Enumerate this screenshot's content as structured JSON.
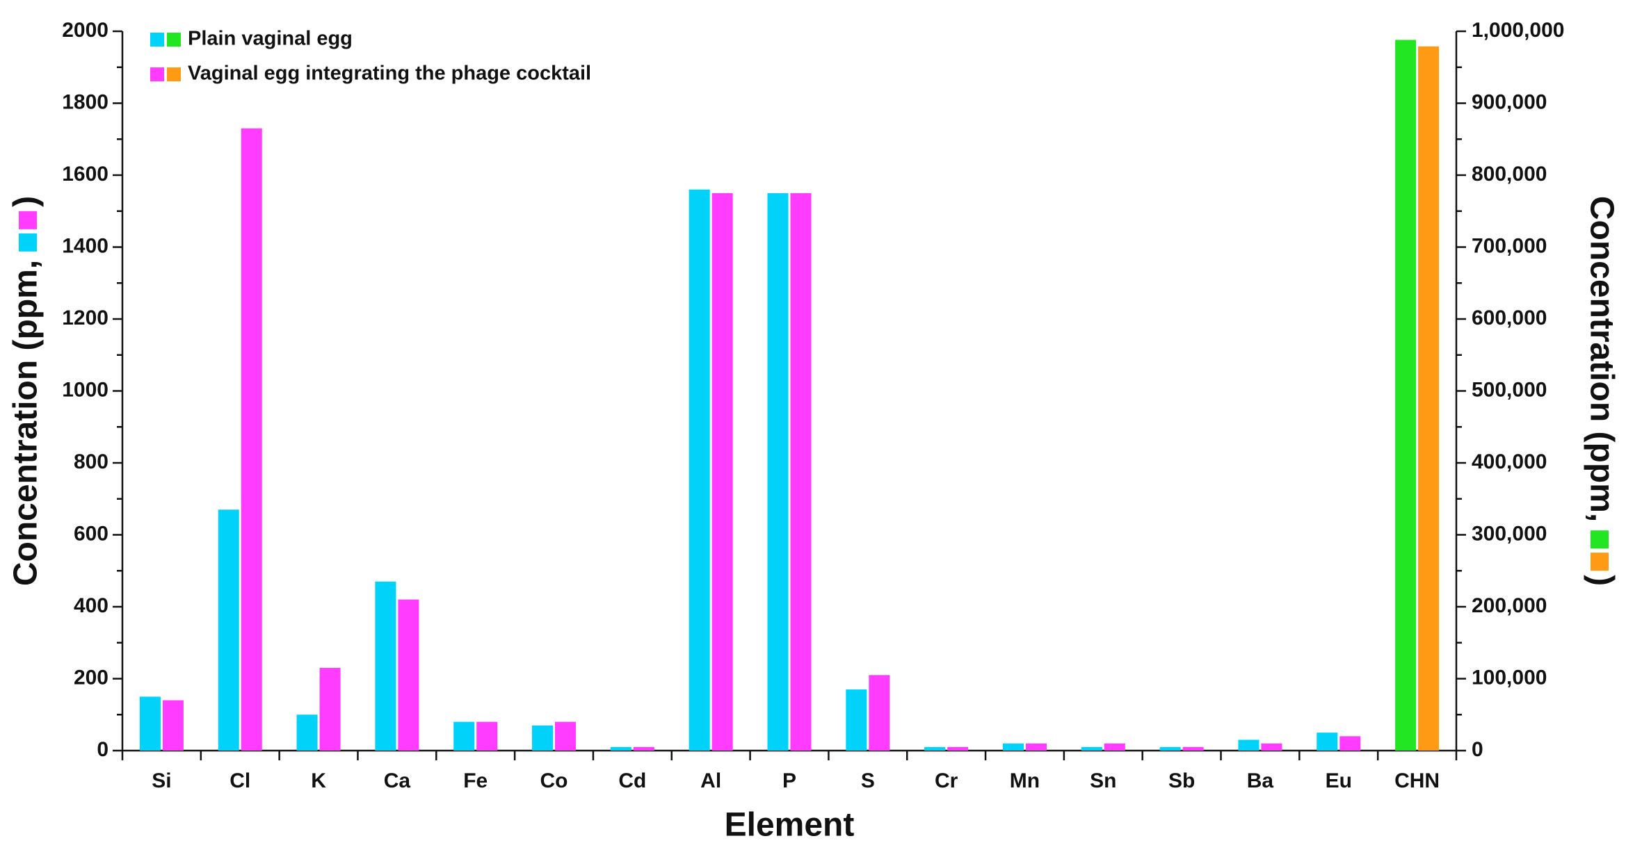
{
  "chart_data": {
    "type": "bar",
    "x_label": "Element",
    "ylabel": {
      "text": "Concentration (ppm,",
      "close": ")"
    },
    "y2label": {
      "text": "Concentration (ppm,",
      "close": ")"
    },
    "categories": [
      "Si",
      "Cl",
      "K",
      "Ca",
      "Fe",
      "Co",
      "Cd",
      "Al",
      "P",
      "S",
      "Cr",
      "Mn",
      "Sn",
      "Sb",
      "Ba",
      "Eu",
      "CHN"
    ],
    "series": [
      {
        "name": "Plain vaginal egg",
        "color": "#00d2fa",
        "values": [
          150,
          670,
          100,
          470,
          80,
          70,
          10,
          1560,
          1550,
          170,
          10,
          20,
          10,
          10,
          30,
          50,
          null
        ]
      },
      {
        "name": "Vaginal egg integrating the phage cocktail",
        "color": "#ff3cff",
        "values": [
          140,
          1730,
          230,
          420,
          80,
          80,
          10,
          1550,
          1550,
          210,
          10,
          20,
          20,
          10,
          20,
          40,
          null
        ]
      },
      {
        "color": "#22e622",
        "axis": "y2",
        "values": [
          null,
          null,
          null,
          null,
          null,
          null,
          null,
          null,
          null,
          null,
          null,
          null,
          null,
          null,
          null,
          null,
          988000
        ]
      },
      {
        "color": "#ff9a14",
        "axis": "y2",
        "values": [
          null,
          null,
          null,
          null,
          null,
          null,
          null,
          null,
          null,
          null,
          null,
          null,
          null,
          null,
          null,
          null,
          979000
        ]
      }
    ],
    "ylim": [
      0,
      2000
    ],
    "yticks": [
      0,
      200,
      400,
      600,
      800,
      1000,
      1200,
      1400,
      1600,
      1800,
      2000
    ],
    "y2lim": [
      0,
      1000000
    ],
    "y2ticks": [
      0,
      {
        "value": 100000,
        "label": "100,000"
      },
      {
        "value": 200000,
        "label": "200,000"
      },
      {
        "value": 300000,
        "label": "300,000"
      },
      {
        "value": 400000,
        "label": "400,000"
      },
      {
        "value": 500000,
        "label": "500,000"
      },
      {
        "value": 600000,
        "label": "600,000"
      },
      {
        "value": 700000,
        "label": "700,000"
      },
      {
        "value": 800000,
        "label": "800,000"
      },
      {
        "value": 900000,
        "label": "900,000"
      },
      {
        "value": 1000000,
        "label": "1,000,000"
      }
    ],
    "grid": false,
    "legend": "upper left"
  }
}
